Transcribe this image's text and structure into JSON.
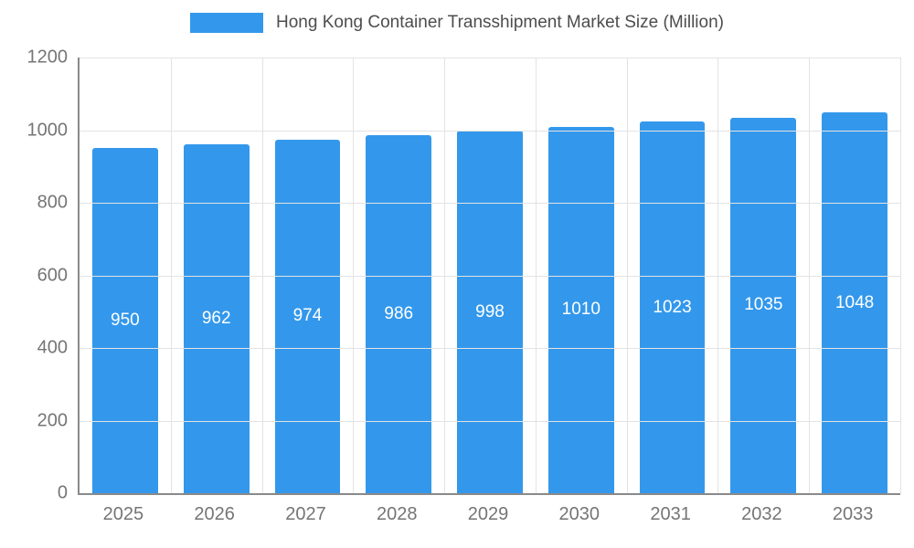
{
  "chart_data": {
    "type": "bar",
    "title": "Hong Kong Container Transshipment Market Size (Million)",
    "categories": [
      "2025",
      "2026",
      "2027",
      "2028",
      "2029",
      "2030",
      "2031",
      "2032",
      "2033"
    ],
    "values": [
      950,
      962,
      974,
      986,
      998,
      1010,
      1023,
      1035,
      1048
    ],
    "xlabel": "",
    "ylabel": "",
    "ylim": [
      0,
      1200
    ],
    "yticks": [
      0,
      200,
      400,
      600,
      800,
      1000,
      1200
    ],
    "grid": true,
    "legend_position": "top",
    "bar_color": "#3398EC",
    "bar_label_color": "#ffffff",
    "grid_color": "#e3e3e3",
    "axis_color": "#8a8a8a",
    "tick_label_color": "#757575"
  }
}
